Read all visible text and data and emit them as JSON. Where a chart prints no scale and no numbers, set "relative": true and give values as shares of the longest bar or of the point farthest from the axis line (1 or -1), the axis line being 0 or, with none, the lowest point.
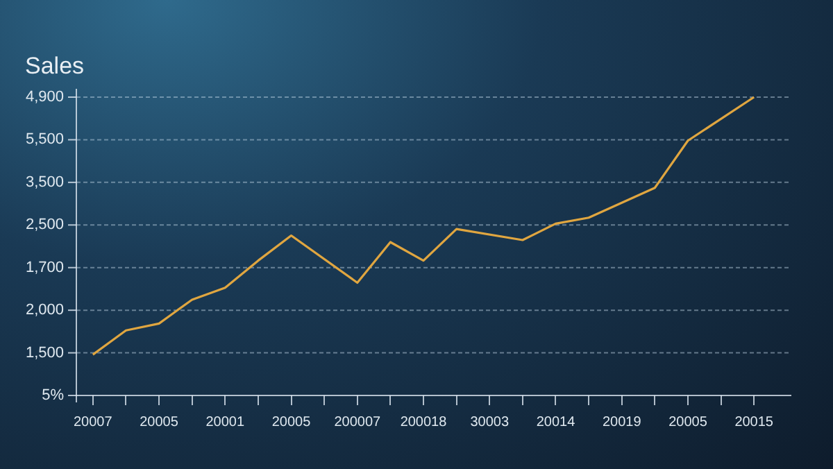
{
  "chart_data": {
    "type": "line",
    "title": "Sales",
    "relative": true,
    "grid": "y",
    "legend": false,
    "categories": [
      "20007",
      null,
      "20005",
      null,
      "20001",
      null,
      "20005",
      null,
      "200007",
      null,
      "200018",
      null,
      "30003",
      null,
      "20014",
      null,
      "20019",
      null,
      "20005",
      null,
      "20015"
    ],
    "series": [
      {
        "color": "#e0a640",
        "values": [
          0.137,
          0.218,
          0.241,
          0.321,
          0.361,
          0.452,
          0.536,
          null,
          0.378,
          0.514,
          0.452,
          0.558,
          null,
          0.521,
          0.576,
          0.596,
          null,
          0.696,
          0.854,
          null,
          1
        ]
      }
    ],
    "annotations": [
      "5%",
      "1,500",
      "2,000",
      "1,700",
      "2,500",
      "3,500",
      "5,500",
      "4,900"
    ]
  }
}
